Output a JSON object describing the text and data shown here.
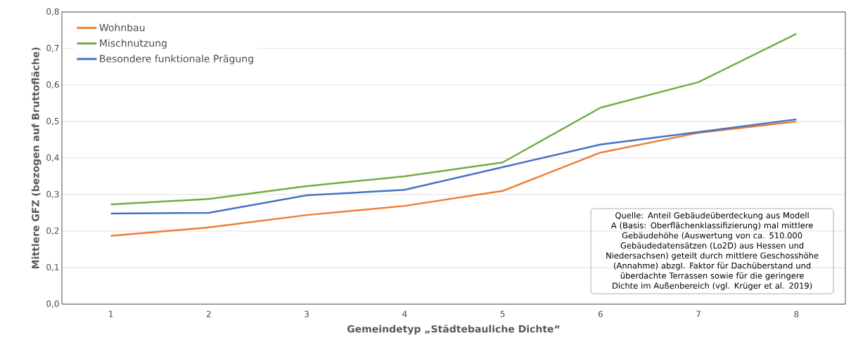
{
  "chart_data": {
    "type": "line",
    "xlabel": "Gemeindetyp „Städtebauliche Dichte“",
    "ylabel": "Mittlere GFZ (bezogen auf Bruttofläche)",
    "categories": [
      "1",
      "2",
      "3",
      "4",
      "5",
      "6",
      "7",
      "8"
    ],
    "series": [
      {
        "name": "Wohnbau",
        "color": "#ed7d31",
        "values": [
          0.187,
          0.21,
          0.244,
          0.269,
          0.31,
          0.415,
          0.469,
          0.5
        ]
      },
      {
        "name": "Mischnutzung",
        "color": "#70ad47",
        "values": [
          0.273,
          0.288,
          0.323,
          0.35,
          0.388,
          0.538,
          0.608,
          0.74
        ]
      },
      {
        "name": "Besondere funktionale Prägung",
        "color": "#4472c4",
        "values": [
          0.248,
          0.25,
          0.298,
          0.313,
          0.375,
          0.437,
          0.471,
          0.506
        ]
      }
    ],
    "ylim": [
      0,
      0.8
    ],
    "yticks": [
      {
        "value": 0,
        "label": "0,0"
      },
      {
        "value": 0.1,
        "label": "0,1"
      },
      {
        "value": 0.2,
        "label": "0,2"
      },
      {
        "value": 0.3,
        "label": "0,3"
      },
      {
        "value": 0.4,
        "label": "0,4"
      },
      {
        "value": 0.5,
        "label": "0,5"
      },
      {
        "value": 0.6,
        "label": "0,6"
      },
      {
        "value": 0.7,
        "label": "0,7"
      },
      {
        "value": 0.8,
        "label": "0,8"
      }
    ],
    "grid": "y",
    "legend": "top left",
    "marker": "none",
    "line_style": "solid",
    "annotations": [
      "Quelle: Anteil Gebäudeüberdeckung aus Modell A (Basis: Oberflächenklassifizierung) mal mittlere Gebäudehöhe (Auswertung von ca. 510.000 Gebäudedatensätzen (Lo2D) aus Hessen und Niedersachsen) geteilt durch mittlere Geschosshöhe (Annahme) abzgl. Faktor für Dachüberstand und überdachte Terrassen sowie für die geringere Dichte im Außenbereich (vgl. Krüger et al. 2019)"
    ]
  }
}
